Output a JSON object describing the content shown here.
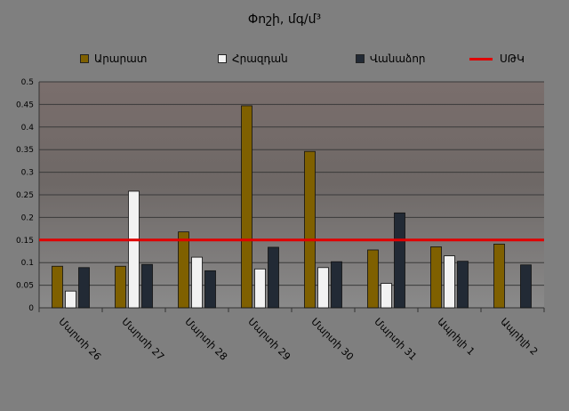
{
  "chart_data": {
    "type": "bar",
    "title": "Փոշի, մգ/մ³",
    "categories": [
      "Մարտի 26",
      "Մարտի 27",
      "Մարտի 28",
      "Մարտի 29",
      "Մարտի 30",
      "Մարտի 31",
      "Ապրիլի 1",
      "Ապրիլի 2"
    ],
    "series": [
      {
        "name": "Արարատ",
        "color": "#7f6000",
        "values": [
          0.092,
          0.092,
          0.168,
          0.447,
          0.346,
          0.128,
          0.135,
          0.141
        ]
      },
      {
        "name": "Հրազդան",
        "color": "#f2f2f2",
        "values": [
          0.037,
          0.258,
          0.112,
          0.086,
          0.089,
          0.054,
          0.115,
          null
        ]
      },
      {
        "name": "Վանաձոր",
        "color": "#222a35",
        "values": [
          0.089,
          0.096,
          0.082,
          0.134,
          0.102,
          0.21,
          0.103,
          0.095
        ]
      }
    ],
    "reference_line": {
      "name": "ՍԹԿ",
      "value": 0.15,
      "color": "#e00000"
    },
    "ylim": [
      0,
      0.5
    ],
    "ytick_labels": [
      "0",
      "0.05",
      "0.1",
      "0.15",
      "0.2",
      "0.25",
      "0.3",
      "0.35",
      "0.4",
      "0.45",
      "0.5"
    ],
    "xlabel": "",
    "ylabel": "",
    "grid": true,
    "legend_position": "top"
  }
}
